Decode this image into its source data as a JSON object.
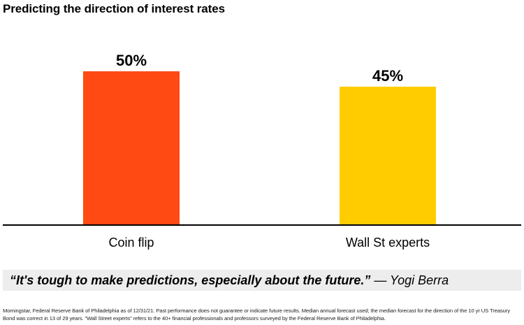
{
  "chart_data": {
    "type": "bar",
    "title": "Predicting the direction of interest rates",
    "categories": [
      "Coin flip",
      "Wall St experts"
    ],
    "values": [
      50,
      45
    ],
    "value_labels": [
      "50%",
      "45%"
    ],
    "colors": [
      "#ff4a14",
      "#ffcc00"
    ],
    "xlabel": "",
    "ylabel": "",
    "ylim": [
      0,
      55
    ],
    "grid": false
  },
  "quote": {
    "text": "“It's tough to make predictions, especially about the future.”",
    "attribution": "— Yogi Berra"
  },
  "footnote": "Morningstar, Federal Reserve Bank of Philadelphia as of 12/31/21. Past performance does not guarantee or indicate future results. Median annual forecast used; the median forecast for the direction of the 10 yr US Treasury Bond was correct in 13 of 29 years. \"Wall Street experts\" refers to the 40+ financial professionals and professors surveyed by the Federal Reserve Bank of Philadelphia."
}
